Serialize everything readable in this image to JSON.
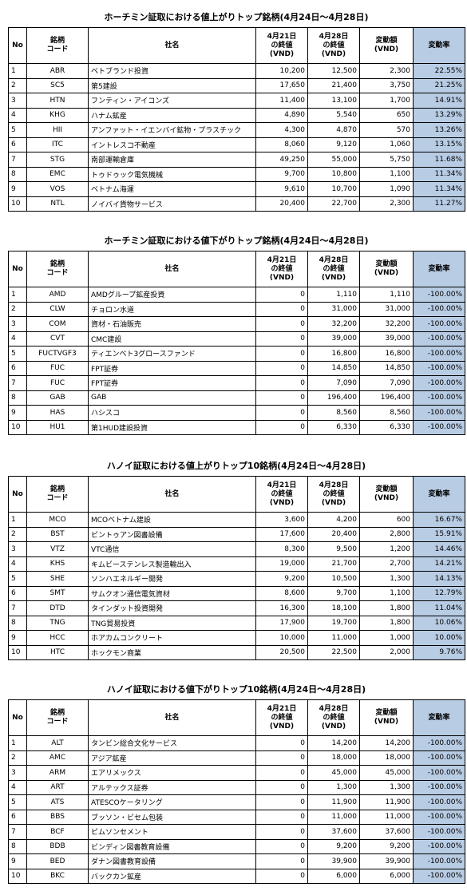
{
  "columns": [
    "No",
    "銘柄\nコード",
    "社名",
    "4月21日\nの終値\n(VND)",
    "4月28日\nの終値\n(VND)",
    "変動額\n(VND)",
    "変動率"
  ],
  "tables": [
    {
      "title": "ホーチミン証取における値上がりトップ銘柄(4月24日～4月28日)",
      "rows": [
        [
          "1",
          "ABR",
          "ベトブランド投資",
          "10,200",
          "12,500",
          "2,300",
          "22.55%"
        ],
        [
          "2",
          "SC5",
          "第5建設",
          "17,650",
          "21,400",
          "3,750",
          "21.25%"
        ],
        [
          "3",
          "HTN",
          "フンティン・アイコンズ",
          "11,400",
          "13,100",
          "1,700",
          "14.91%"
        ],
        [
          "4",
          "KHG",
          "ハナム鉱産",
          "4,890",
          "5,540",
          "650",
          "13.29%"
        ],
        [
          "5",
          "HII",
          "アンファット・イエンバイ鉱物・プラスチック",
          "4,300",
          "4,870",
          "570",
          "13.26%"
        ],
        [
          "6",
          "ITC",
          "イントレスコ不動産",
          "8,060",
          "9,120",
          "1,060",
          "13.15%"
        ],
        [
          "7",
          "STG",
          "南部運輸倉庫",
          "49,250",
          "55,000",
          "5,750",
          "11.68%"
        ],
        [
          "8",
          "EMC",
          "トゥドゥック電気機械",
          "9,700",
          "10,800",
          "1,100",
          "11.34%"
        ],
        [
          "9",
          "VOS",
          "ベトナム海運",
          "9,610",
          "10,700",
          "1,090",
          "11.34%"
        ],
        [
          "10",
          "NTL",
          "ノイバイ貨物サービス",
          "20,400",
          "22,700",
          "2,300",
          "11.27%"
        ]
      ]
    },
    {
      "title": "ホーチミン証取における値下がりトップ銘柄(4月24日～4月28日)",
      "rows": [
        [
          "1",
          "AMD",
          "AMDグループ鉱産投資",
          "0",
          "1,110",
          "1,110",
          "-100.00%"
        ],
        [
          "2",
          "CLW",
          "チョロン水道",
          "0",
          "31,000",
          "31,000",
          "-100.00%"
        ],
        [
          "3",
          "COM",
          "資材・石油販売",
          "0",
          "32,200",
          "32,200",
          "-100.00%"
        ],
        [
          "4",
          "CVT",
          "CMC建設",
          "0",
          "39,000",
          "39,000",
          "-100.00%"
        ],
        [
          "5",
          "FUCTVGF3",
          "ティエンベト3グロースファンド",
          "0",
          "16,800",
          "16,800",
          "-100.00%"
        ],
        [
          "6",
          "FUC",
          "FPT証券",
          "0",
          "14,850",
          "14,850",
          "-100.00%"
        ],
        [
          "7",
          "FUC",
          "FPT証券",
          "0",
          "7,090",
          "7,090",
          "-100.00%"
        ],
        [
          "8",
          "GAB",
          "GAB",
          "0",
          "196,400",
          "196,400",
          "-100.00%"
        ],
        [
          "9",
          "HAS",
          "ハシスコ",
          "0",
          "8,560",
          "8,560",
          "-100.00%"
        ],
        [
          "10",
          "HU1",
          "第1HUD建設投資",
          "0",
          "6,330",
          "6,330",
          "-100.00%"
        ]
      ]
    },
    {
      "title": "ハノイ証取における値上がりトップ10銘柄(4月24日～4月28日)",
      "rows": [
        [
          "1",
          "MCO",
          "MCOベトナム建設",
          "3,600",
          "4,200",
          "600",
          "16.67%"
        ],
        [
          "2",
          "BST",
          "ビントゥアン図書設備",
          "17,600",
          "20,400",
          "2,800",
          "15.91%"
        ],
        [
          "3",
          "VTZ",
          "VTC通信",
          "8,300",
          "9,500",
          "1,200",
          "14.46%"
        ],
        [
          "4",
          "KHS",
          "キムビーステンレス製造輸出入",
          "19,000",
          "21,700",
          "2,700",
          "14.21%"
        ],
        [
          "5",
          "SHE",
          "ソンハエネルギー開発",
          "9,200",
          "10,500",
          "1,300",
          "14.13%"
        ],
        [
          "6",
          "SMT",
          "サムクオン通信電気資材",
          "8,600",
          "9,700",
          "1,100",
          "12.79%"
        ],
        [
          "7",
          "DTD",
          "タインダット投資開発",
          "16,300",
          "18,100",
          "1,800",
          "11.04%"
        ],
        [
          "8",
          "TNG",
          "TNG貿易投資",
          "17,900",
          "19,700",
          "1,800",
          "10.06%"
        ],
        [
          "9",
          "HCC",
          "ホアカムコンクリート",
          "10,000",
          "11,000",
          "1,000",
          "10.00%"
        ],
        [
          "10",
          "HTC",
          "ホックモン商業",
          "20,500",
          "22,500",
          "2,000",
          "9.76%"
        ]
      ]
    },
    {
      "title": "ハノイ証取における値下がりトップ10銘柄(4月24日～4月28日)",
      "rows": [
        [
          "1",
          "ALT",
          "タンビン総合文化サービス",
          "0",
          "14,200",
          "14,200",
          "-100.00%"
        ],
        [
          "2",
          "AMC",
          "アジア鉱産",
          "0",
          "18,000",
          "18,000",
          "-100.00%"
        ],
        [
          "3",
          "ARM",
          "エアリメックス",
          "0",
          "45,000",
          "45,000",
          "-100.00%"
        ],
        [
          "4",
          "ART",
          "アルテックス証券",
          "0",
          "1,300",
          "1,300",
          "-100.00%"
        ],
        [
          "5",
          "ATS",
          "ATESCOケータリング",
          "0",
          "11,900",
          "11,900",
          "-100.00%"
        ],
        [
          "6",
          "BBS",
          "ブッソン・ビセム包装",
          "0",
          "11,000",
          "11,000",
          "-100.00%"
        ],
        [
          "7",
          "BCF",
          "ビムソンセメント",
          "0",
          "37,600",
          "37,600",
          "-100.00%"
        ],
        [
          "8",
          "BDB",
          "ビンディン図書教育設備",
          "0",
          "9,200",
          "9,200",
          "-100.00%"
        ],
        [
          "9",
          "BED",
          "ダナン図書教育設備",
          "0",
          "39,900",
          "39,900",
          "-100.00%"
        ],
        [
          "10",
          "BKC",
          "バックカン鉱産",
          "0",
          "6,000",
          "6,000",
          "-100.00%"
        ]
      ]
    }
  ]
}
